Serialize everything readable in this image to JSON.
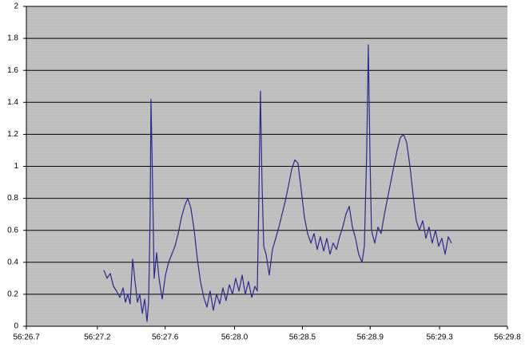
{
  "chart_data": {
    "type": "line",
    "color": "#2a2a8a",
    "grid": true,
    "ylim": [
      0,
      2
    ],
    "yticks": [
      0,
      0.2,
      0.4,
      0.6,
      0.8,
      1,
      1.2,
      1.4,
      1.6,
      1.8,
      2
    ],
    "xlim": [
      3386.7,
      3389.75
    ],
    "xticks": [
      {
        "value": 3386.7,
        "label": "56:26.7"
      },
      {
        "value": 3387.15,
        "label": "56:27.2"
      },
      {
        "value": 3387.58,
        "label": "56:27.6"
      },
      {
        "value": 3388.02,
        "label": "56:28.0"
      },
      {
        "value": 3388.45,
        "label": "56:28.5"
      },
      {
        "value": 3388.88,
        "label": "56:28.9"
      },
      {
        "value": 3389.32,
        "label": "56:29.3"
      },
      {
        "value": 3389.75,
        "label": "56:29.8"
      }
    ],
    "x": [
      3387.191,
      3387.212,
      3387.232,
      3387.252,
      3387.272,
      3387.293,
      3387.313,
      3387.328,
      3387.343,
      3387.358,
      3387.374,
      3387.389,
      3387.404,
      3387.419,
      3387.435,
      3387.45,
      3387.465,
      3387.475,
      3387.485,
      3387.49,
      3387.5,
      3387.51,
      3387.526,
      3387.541,
      3387.561,
      3387.582,
      3387.602,
      3387.622,
      3387.642,
      3387.663,
      3387.683,
      3387.703,
      3387.723,
      3387.743,
      3387.764,
      3387.784,
      3387.804,
      3387.825,
      3387.845,
      3387.865,
      3387.885,
      3387.906,
      3387.926,
      3387.946,
      3387.966,
      3387.987,
      3388.007,
      3388.027,
      3388.048,
      3388.068,
      3388.088,
      3388.108,
      3388.129,
      3388.149,
      3388.164,
      3388.174,
      3388.184,
      3388.194,
      3388.205,
      3388.22,
      3388.24,
      3388.26,
      3388.281,
      3388.301,
      3388.321,
      3388.341,
      3388.362,
      3388.382,
      3388.402,
      3388.422,
      3388.443,
      3388.463,
      3388.483,
      3388.504,
      3388.524,
      3388.544,
      3388.564,
      3388.585,
      3388.605,
      3388.625,
      3388.645,
      3388.666,
      3388.686,
      3388.706,
      3388.726,
      3388.747,
      3388.767,
      3388.787,
      3388.807,
      3388.828,
      3388.843,
      3388.858,
      3388.868,
      3388.878,
      3388.888,
      3388.909,
      3388.929,
      3388.949,
      3388.97,
      3388.99,
      3389.01,
      3389.03,
      3389.051,
      3389.071,
      3389.091,
      3389.111,
      3389.132,
      3389.152,
      3389.172,
      3389.192,
      3389.213,
      3389.233,
      3389.253,
      3389.273,
      3389.294,
      3389.314,
      3389.334,
      3389.355,
      3389.375,
      3389.395
    ],
    "values": [
      0.35,
      0.3,
      0.33,
      0.25,
      0.22,
      0.18,
      0.24,
      0.15,
      0.2,
      0.14,
      0.42,
      0.28,
      0.15,
      0.2,
      0.08,
      0.17,
      0.03,
      0.15,
      0.7,
      1.42,
      0.9,
      0.3,
      0.46,
      0.3,
      0.17,
      0.32,
      0.4,
      0.45,
      0.5,
      0.58,
      0.68,
      0.75,
      0.8,
      0.74,
      0.6,
      0.42,
      0.28,
      0.18,
      0.12,
      0.22,
      0.1,
      0.2,
      0.14,
      0.24,
      0.16,
      0.26,
      0.2,
      0.3,
      0.22,
      0.32,
      0.2,
      0.28,
      0.18,
      0.25,
      0.22,
      0.8,
      1.47,
      0.9,
      0.5,
      0.45,
      0.32,
      0.48,
      0.55,
      0.62,
      0.7,
      0.78,
      0.88,
      0.98,
      1.04,
      1.02,
      0.85,
      0.68,
      0.58,
      0.52,
      0.58,
      0.48,
      0.56,
      0.47,
      0.55,
      0.45,
      0.52,
      0.48,
      0.56,
      0.62,
      0.7,
      0.75,
      0.62,
      0.55,
      0.45,
      0.4,
      0.5,
      1.1,
      1.76,
      1.1,
      0.6,
      0.52,
      0.62,
      0.58,
      0.7,
      0.8,
      0.9,
      1.0,
      1.1,
      1.18,
      1.2,
      1.15,
      1.0,
      0.82,
      0.66,
      0.6,
      0.66,
      0.55,
      0.62,
      0.52,
      0.6,
      0.5,
      0.55,
      0.45,
      0.56,
      0.52
    ]
  }
}
